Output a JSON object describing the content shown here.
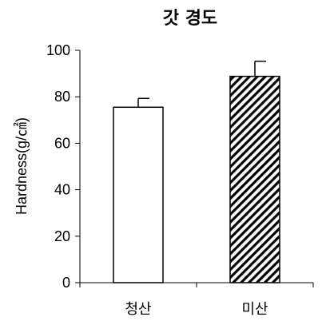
{
  "chart_data": {
    "type": "bar",
    "title": "갓 경도",
    "ylabel": "Hardness(g/㎠)",
    "xlabel": "",
    "categories": [
      "청산",
      "미산"
    ],
    "values": [
      75.5,
      88.8
    ],
    "errors": [
      3.8,
      6.5
    ],
    "ylim": [
      0,
      100
    ],
    "yticks": [
      0,
      20,
      40,
      60,
      80,
      100
    ],
    "grid": false,
    "bar_styles": [
      "white",
      "hatched"
    ]
  }
}
